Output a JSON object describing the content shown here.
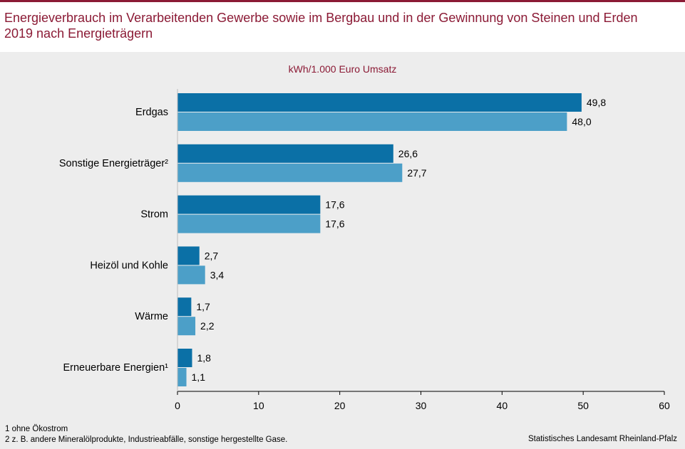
{
  "chart_data": {
    "type": "bar",
    "orientation": "horizontal",
    "title_lines": [
      "Energieverbrauch im Verarbeitenden Gewerbe sowie im Bergbau und in der Gewinnung von Steinen und Erden",
      "2019 nach Energieträgern"
    ],
    "unit": "kWh/1.000  Euro Umsatz",
    "categories": [
      "Erdgas",
      "Sonstige Energieträger²",
      "Strom",
      "Heizöl und Kohle",
      "Wärme",
      "Erneuerbare Energien¹"
    ],
    "series": [
      {
        "color": "#0b70a6",
        "values": [
          49.8,
          26.6,
          17.6,
          2.7,
          1.7,
          1.8
        ],
        "labels": [
          "49,8",
          "26,6",
          "17,6",
          "2,7",
          "1,7",
          "1,8"
        ]
      },
      {
        "color": "#4c9fc8",
        "values": [
          48.0,
          27.7,
          17.6,
          3.4,
          2.2,
          1.1
        ],
        "labels": [
          "48,0",
          "27,7",
          "17,6",
          "3,4",
          "2,2",
          "1,1"
        ]
      }
    ],
    "xlim": [
      0,
      60
    ],
    "xticks": [
      0,
      10,
      20,
      30,
      40,
      50,
      60
    ],
    "grid": false,
    "legend": "none"
  },
  "footnotes": [
    "1 ohne Ökostrom",
    "2 z. B.  andere  Mineralölprodukte,  Industrieabfälle,  sonstige hergestellte  Gase."
  ],
  "source": "Statistisches Landesamt Rheinland-Pfalz"
}
